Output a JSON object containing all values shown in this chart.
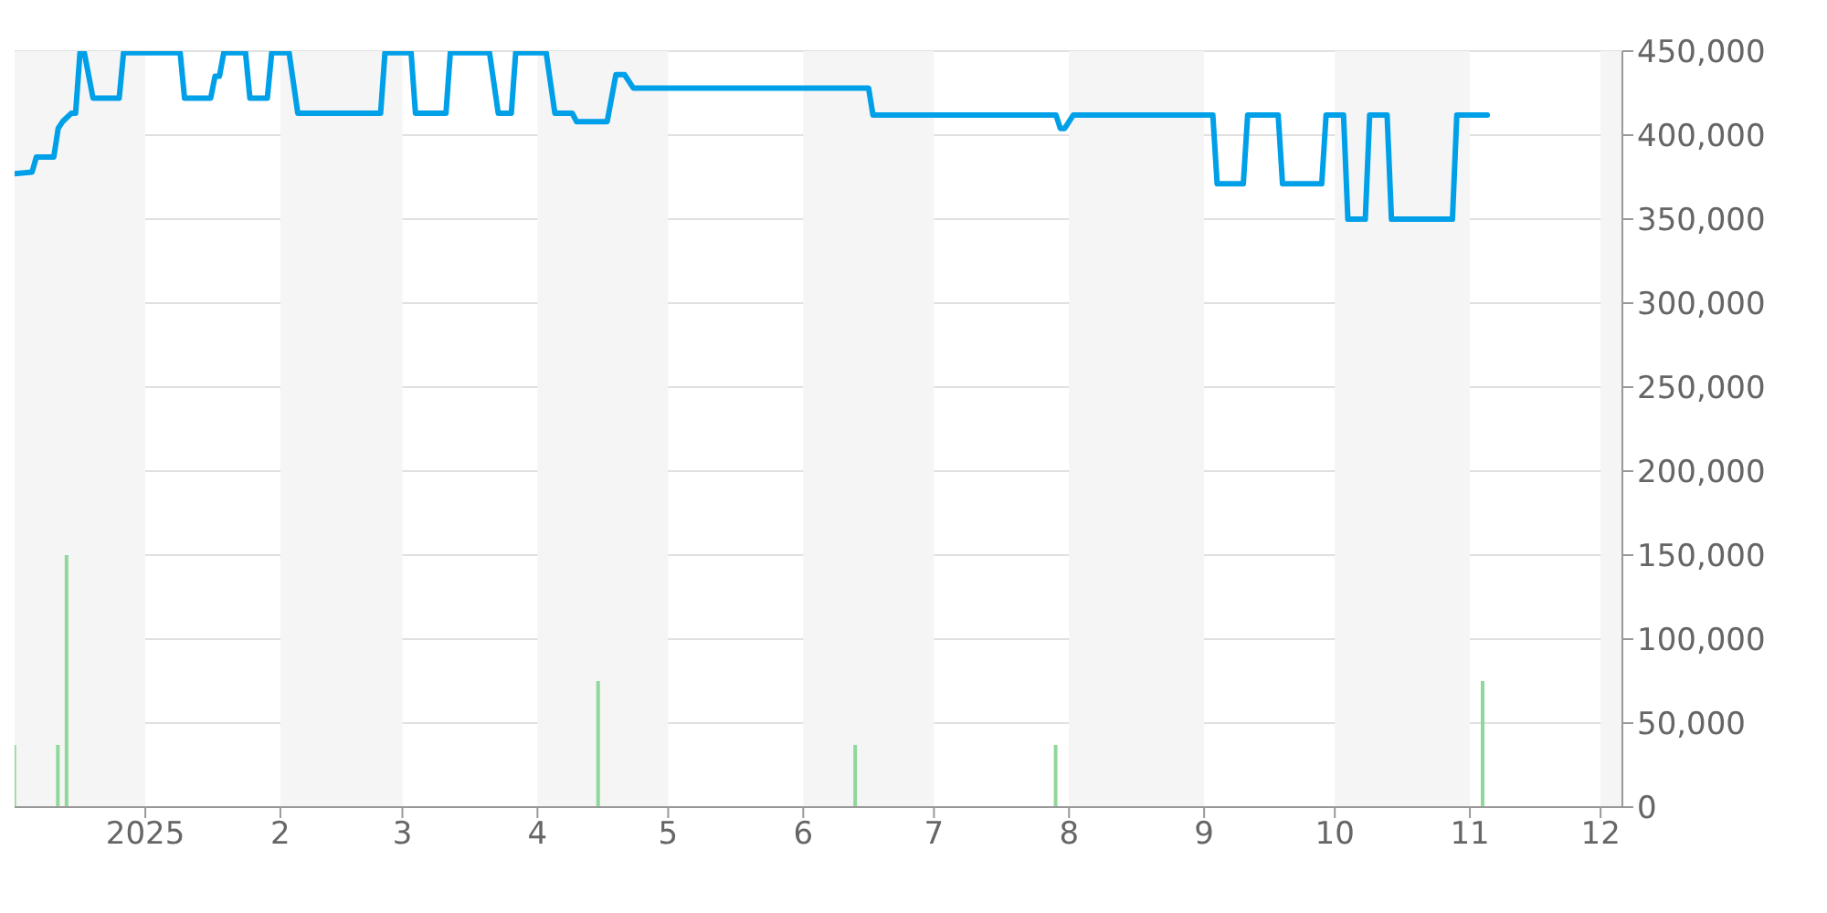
{
  "chart_data": {
    "type": "line",
    "xlim": [
      "2024-12-02",
      "2025-12-06"
    ],
    "xticks": [
      {
        "value": "2025-01-01",
        "label": "2025"
      },
      {
        "value": "2025-02-01",
        "label": "2"
      },
      {
        "value": "2025-03-01",
        "label": "3"
      },
      {
        "value": "2025-04-01",
        "label": "4"
      },
      {
        "value": "2025-05-01",
        "label": "5"
      },
      {
        "value": "2025-06-01",
        "label": "6"
      },
      {
        "value": "2025-07-01",
        "label": "7"
      },
      {
        "value": "2025-08-01",
        "label": "8"
      },
      {
        "value": "2025-09-01",
        "label": "9"
      },
      {
        "value": "2025-10-01",
        "label": "10"
      },
      {
        "value": "2025-11-01",
        "label": "11"
      },
      {
        "value": "2025-12-01",
        "label": "12"
      }
    ],
    "ylim": [
      0,
      450000
    ],
    "yticks": [
      0,
      {
        "value": 50000,
        "label": "50,000"
      },
      {
        "value": 100000,
        "label": "100,000"
      },
      {
        "value": 150000,
        "label": "150,000"
      },
      {
        "value": 200000,
        "label": "200,000"
      },
      {
        "value": 250000,
        "label": "250,000"
      },
      {
        "value": 300000,
        "label": "300,000"
      },
      {
        "value": 350000,
        "label": "350,000"
      },
      {
        "value": 400000,
        "label": "400,000"
      },
      {
        "value": 450000,
        "label": "450,000"
      }
    ],
    "grid": "y",
    "bands": [
      {
        "axis": "x",
        "from": "2024-12-02",
        "to": "2025-01-01",
        "color": "#f5f5f5"
      },
      {
        "axis": "x",
        "from": "2025-02-01",
        "to": "2025-03-01",
        "color": "#f5f5f5"
      },
      {
        "axis": "x",
        "from": "2025-04-01",
        "to": "2025-05-01",
        "color": "#f5f5f5"
      },
      {
        "axis": "x",
        "from": "2025-06-01",
        "to": "2025-07-01",
        "color": "#f5f5f5"
      },
      {
        "axis": "x",
        "from": "2025-08-01",
        "to": "2025-09-01",
        "color": "#f5f5f5"
      },
      {
        "axis": "x",
        "from": "2025-10-01",
        "to": "2025-11-01",
        "color": "#f5f5f5"
      },
      {
        "axis": "x",
        "from": "2025-12-01",
        "to": "2025-12-06",
        "color": "#f5f5f5"
      }
    ],
    "series": [
      {
        "color": "#00a0e9",
        "x": [
          "2024-12-02",
          "2024-12-06",
          "2024-12-07",
          "2024-12-11",
          "2024-12-12",
          "2024-12-13",
          "2024-12-15",
          "2024-12-16",
          "2024-12-17",
          "2024-12-18",
          "2024-12-20",
          "2024-12-26",
          "2024-12-27",
          "2025-01-09",
          "2025-01-10",
          "2025-01-16",
          "2025-01-17",
          "2025-01-18",
          "2025-01-19",
          "2025-01-24",
          "2025-01-25",
          "2025-01-29",
          "2025-01-30",
          "2025-02-03",
          "2025-02-05",
          "2025-02-24",
          "2025-02-25",
          "2025-03-03",
          "2025-03-04",
          "2025-03-11",
          "2025-03-12",
          "2025-03-21",
          "2025-03-23",
          "2025-03-26",
          "2025-03-27",
          "2025-04-03",
          "2025-04-05",
          "2025-04-09",
          "2025-04-10",
          "2025-04-17",
          "2025-04-19",
          "2025-04-21",
          "2025-04-23",
          "2025-06-16",
          "2025-06-17",
          "2025-07-29",
          "2025-07-30",
          "2025-07-31",
          "2025-08-02",
          "2025-09-03",
          "2025-09-04",
          "2025-09-10",
          "2025-09-11",
          "2025-09-18",
          "2025-09-19",
          "2025-09-28",
          "2025-09-29",
          "2025-10-03",
          "2025-10-04",
          "2025-10-08",
          "2025-10-09",
          "2025-10-13",
          "2025-10-14",
          "2025-10-28",
          "2025-10-29",
          "2025-11-05"
        ],
        "values": [
          377000,
          378000,
          387000,
          387000,
          404000,
          408000,
          413000,
          413000,
          449000,
          449000,
          422000,
          422000,
          449000,
          449000,
          422000,
          422000,
          435000,
          435000,
          449000,
          449000,
          422000,
          422000,
          449000,
          449000,
          413000,
          413000,
          449000,
          449000,
          413000,
          413000,
          449000,
          449000,
          413000,
          413000,
          449000,
          449000,
          413000,
          413000,
          408000,
          408000,
          436000,
          436000,
          428000,
          428000,
          412000,
          412000,
          404000,
          404000,
          412000,
          412000,
          371000,
          371000,
          412000,
          412000,
          371000,
          371000,
          412000,
          412000,
          350000,
          350000,
          412000,
          412000,
          350000,
          350000,
          412000,
          412000
        ]
      },
      {
        "type": "bar",
        "color": "#8fd89a",
        "x": [
          "2024-12-02",
          "2024-12-12",
          "2024-12-14",
          "2025-04-15",
          "2025-06-13",
          "2025-07-29",
          "2025-11-04"
        ],
        "values": [
          37000,
          37000,
          150000,
          75000,
          37000,
          37000,
          75000
        ]
      }
    ]
  }
}
